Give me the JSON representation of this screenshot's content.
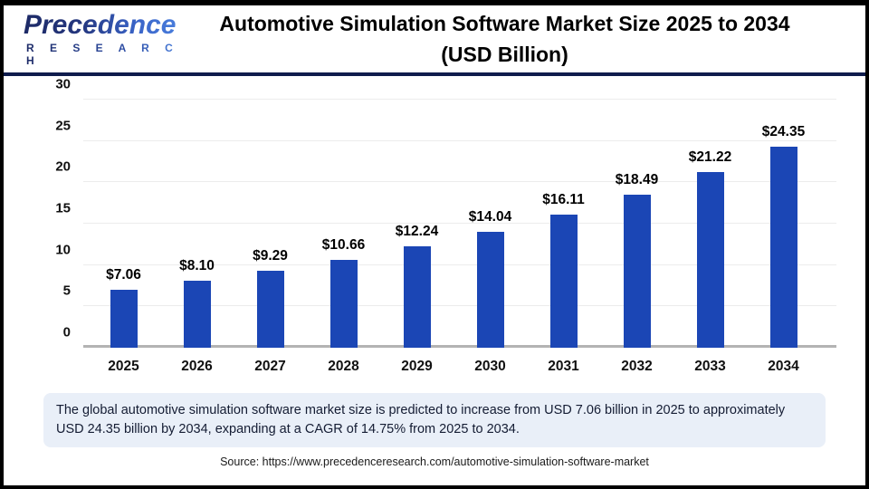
{
  "logo": {
    "name": "Precedence",
    "subname": "R E S E A R C H"
  },
  "header": {
    "title_line1": "Automotive Simulation Software Market Size 2025 to 2034",
    "title_line2": "(USD Billion)"
  },
  "chart_data": {
    "type": "bar",
    "title": "Automotive Simulation Software Market Size 2025 to 2034 (USD Billion)",
    "categories": [
      "2025",
      "2026",
      "2027",
      "2028",
      "2029",
      "2030",
      "2031",
      "2032",
      "2033",
      "2034"
    ],
    "values": [
      7.06,
      8.1,
      9.29,
      10.66,
      12.24,
      14.04,
      16.11,
      18.49,
      21.22,
      24.35
    ],
    "bar_labels": [
      "$7.06",
      "$8.10",
      "$9.29",
      "$10.66",
      "$12.24",
      "$14.04",
      "$16.11",
      "$18.49",
      "$21.22",
      "$24.35"
    ],
    "xlabel": "",
    "ylabel": "",
    "ylim": [
      0,
      30
    ],
    "yticks": [
      0,
      5,
      10,
      15,
      20,
      25,
      30
    ],
    "grid": true,
    "legend": false,
    "bar_color": "#1b46b5"
  },
  "note": {
    "text": "The global automotive simulation software market size is predicted to increase from USD 7.06 billion in 2025 to approximately USD 24.35 billion by 2034, expanding at a CAGR of 14.75% from 2025 to 2034."
  },
  "source": {
    "text": "Source: https://www.precedenceresearch.com/automotive-simulation-software-market"
  },
  "colors": {
    "bar": "#1b46b5",
    "divider_navy": "#0f1c4d",
    "note_bg": "#e9eff8",
    "gridline": "#ececec",
    "baseline": "#b3b3b3",
    "frame_border": "#000000"
  }
}
